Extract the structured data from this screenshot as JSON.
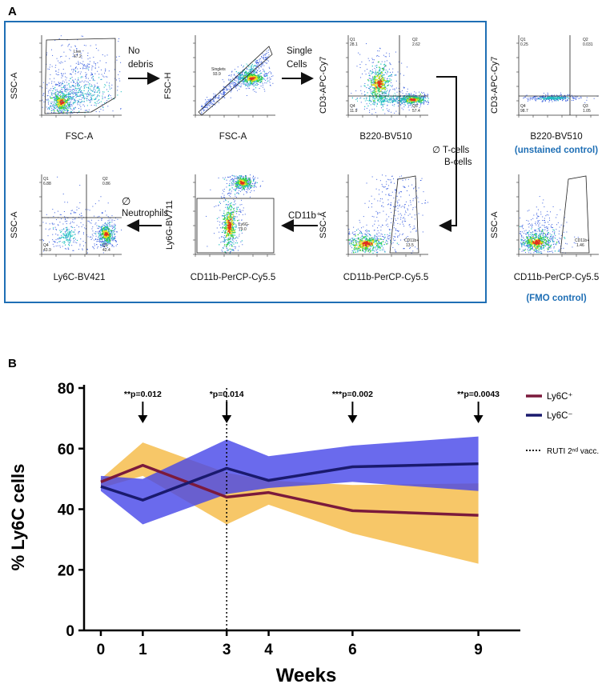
{
  "panel_a": {
    "label": "A",
    "plots": {
      "p1": {
        "ylabel": "SSC-A",
        "xlabel": "FSC-A",
        "gate": "Live",
        "gate_value": "67.2"
      },
      "p2": {
        "ylabel": "FSC-H",
        "xlabel": "FSC-A",
        "gate": "Singlets",
        "gate_value": "93.9"
      },
      "p3": {
        "ylabel": "CD3-APC-Cy7",
        "xlabel": "B220-BV510",
        "q1": "Q1",
        "q1_value": "28.1",
        "q2": "Q2",
        "q2_value": "2.62",
        "q3": "Q3",
        "q3_value": "57.4",
        "q4": "Q4",
        "q4_value": "11.9"
      },
      "p4": {
        "ylabel": "CD3-APC-Cy7",
        "xlabel": "B220-BV510",
        "control": "(unstained control)",
        "q1": "Q1",
        "q1_value": "0.25",
        "q2": "Q2",
        "q2_value": "0.031",
        "q3": "Q3",
        "q3_value": "1.05",
        "q4": "Q4",
        "q4_value": "98.7"
      },
      "p5": {
        "ylabel": "SSC-A",
        "xlabel": "CD11b-PerCP-Cy5.5",
        "gate": "CD11b+",
        "gate_value": "13.5"
      },
      "p6": {
        "ylabel": "SSC-A",
        "xlabel": "CD11b-PerCP-Cy5.5",
        "control": "(FMO control)",
        "gate": "CD11b+",
        "gate_value": "1.46"
      },
      "p7": {
        "ylabel": "Ly6G-BV711",
        "xlabel": "CD11b-PerCP-Cy5.5",
        "gate": "Ly6G-",
        "gate_value": "79.0"
      },
      "p8": {
        "ylabel": "SSC-A",
        "xlabel": "Ly6C-BV421",
        "q1": "Q1",
        "q1_value": "6.88",
        "q2": "Q2",
        "q2_value": "0.86",
        "q3": "Q3",
        "q3_value": "42.4",
        "q4": "Q4",
        "q4_value": "43.9"
      }
    },
    "steps": {
      "no_debris_1": "No",
      "no_debris_2": "debris",
      "single_1": "Single",
      "single_2": "Cells",
      "t_cells": "∅ T-cells",
      "b_cells": "B-cells",
      "cd11b": "CD11b⁺",
      "neutro_symbol": "∅",
      "neutro": "Neutrophils"
    }
  },
  "panel_b": {
    "label": "B",
    "colors": {
      "ly6c_pos": "#7b1a3c",
      "ly6c_neg": "#1a1a6e",
      "band_pos": "#f5b942",
      "band_neg": "#4545e8"
    },
    "annotations": [
      {
        "week": 1,
        "text": "**p=0.012"
      },
      {
        "week": 3,
        "text": "*p=0.014"
      },
      {
        "week": 6,
        "text": "***p=0.002"
      },
      {
        "week": 9,
        "text": "**p=0.0043"
      }
    ],
    "legend": {
      "ly6c_pos": "Ly6C⁺",
      "ly6c_neg": "Ly6C⁻",
      "ruti": "RUTI 2ⁿᵈ vacc."
    }
  },
  "chart_data": {
    "type": "line",
    "title": "",
    "xlabel": "Weeks",
    "ylabel": "% Ly6C cells",
    "x": [
      0,
      1,
      3,
      4,
      6,
      9
    ],
    "xticks": [
      "0",
      "1",
      "3",
      "4",
      "6",
      "9"
    ],
    "yticks": [
      "0",
      "20",
      "40",
      "60",
      "80"
    ],
    "xlim": [
      -0.4,
      10
    ],
    "ylim": [
      0,
      80
    ],
    "vline_week": 3,
    "series": [
      {
        "name": "Ly6C+",
        "values": [
          49,
          54.5,
          44,
          45.5,
          39.5,
          38
        ],
        "upper": [
          50,
          62,
          52,
          49.5,
          48,
          48.5
        ],
        "lower": [
          47,
          51,
          35,
          41.5,
          32,
          22
        ]
      },
      {
        "name": "Ly6C-",
        "values": [
          47.5,
          43,
          53.5,
          49.5,
          54,
          55
        ],
        "upper": [
          51,
          50,
          63,
          57.5,
          61,
          64
        ],
        "lower": [
          46,
          35,
          45,
          47,
          49,
          46
        ]
      }
    ]
  }
}
